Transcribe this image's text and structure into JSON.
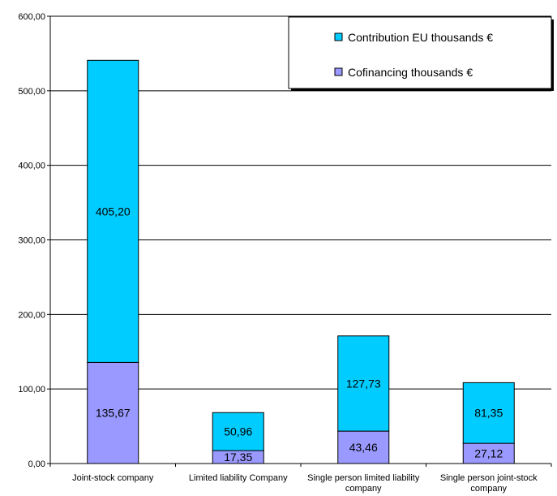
{
  "chart_data": {
    "type": "bar",
    "stacked": true,
    "categories": [
      "Joint-stock company",
      "Limited liability Company",
      "Single person limited liability company",
      "Single person joint-stock company"
    ],
    "series": [
      {
        "name": "Cofinancing thousands €",
        "values": [
          135.67,
          17.35,
          43.46,
          27.12
        ],
        "labels": [
          "135,67",
          "17,35",
          "43,46",
          "27,12"
        ],
        "color": "#9999FF"
      },
      {
        "name": "Contribution EU thousands €",
        "values": [
          405.2,
          50.96,
          127.73,
          81.35
        ],
        "labels": [
          "405,20",
          "50,96",
          "127,73",
          "81,35"
        ],
        "color": "#00CCFF"
      }
    ],
    "ylim": [
      0,
      600
    ],
    "yticks": [
      0,
      100,
      200,
      300,
      400,
      500,
      600
    ],
    "ytick_labels": [
      "0,00",
      "100,00",
      "200,00",
      "300,00",
      "400,00",
      "500,00",
      "600,00"
    ],
    "grid": true,
    "legend": "top-right",
    "legend_order": [
      1,
      0
    ]
  }
}
